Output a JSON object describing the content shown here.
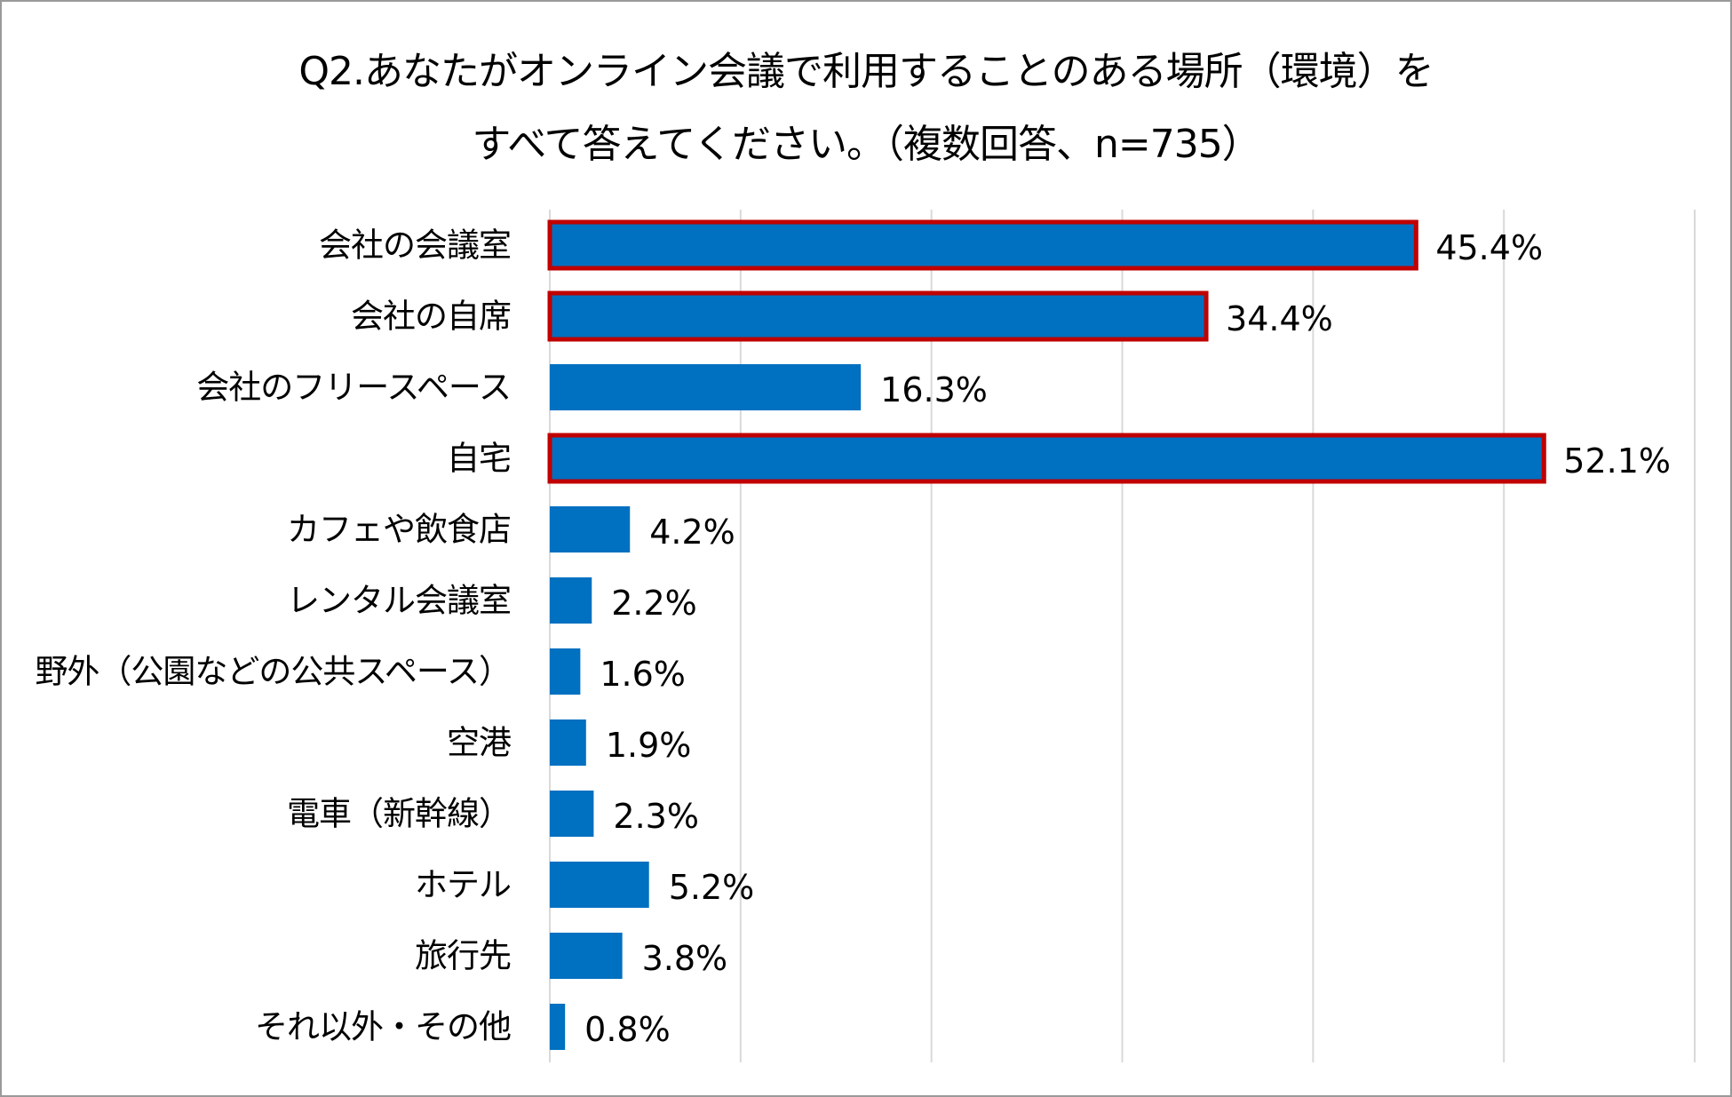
{
  "chart_data": {
    "type": "bar",
    "orientation": "horizontal",
    "title": "Q2.あなたがオンライン会議で利用することのある場所（環境）を",
    "subtitle": "すべて答えてください。（複数回答、n=735）",
    "categories": [
      "会社の会議室",
      "会社の自席",
      "会社のフリースペース",
      "自宅",
      "カフェや飲食店",
      "レンタル会議室",
      "野外（公園などの公共スペース）",
      "空港",
      "電車（新幹線）",
      "ホテル",
      "旅行先",
      "それ以外・その他"
    ],
    "values": [
      45.4,
      34.4,
      16.3,
      52.1,
      4.2,
      2.2,
      1.6,
      1.9,
      2.3,
      5.2,
      3.8,
      0.8
    ],
    "value_labels": [
      "45.4%",
      "34.4%",
      "16.3%",
      "52.1%",
      "4.2%",
      "2.2%",
      "1.6%",
      "1.9%",
      "2.3%",
      "5.2%",
      "3.8%",
      "0.8%"
    ],
    "highlighted": [
      true,
      true,
      false,
      true,
      false,
      false,
      false,
      false,
      false,
      false,
      false,
      false
    ],
    "xlim": [
      0,
      60
    ],
    "x_gridlines": [
      0,
      10,
      20,
      30,
      40,
      50,
      60
    ],
    "grid": true,
    "bar_color": "#0070c0",
    "highlight_border_color": "#c00000",
    "grid_color": "#d9d9d9",
    "xlabel": "",
    "ylabel": ""
  }
}
